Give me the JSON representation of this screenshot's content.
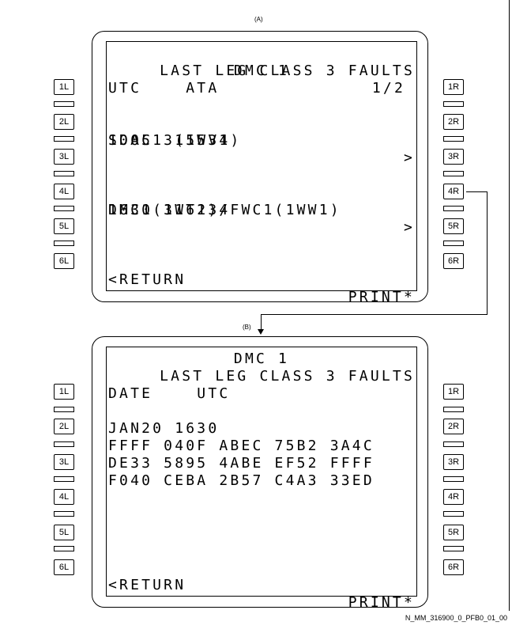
{
  "caption_a": "(A)",
  "caption_b": "(B)",
  "figure_id": "N_MM_316900_0_PFB0_01_00",
  "left_keys": [
    "1L",
    "2L",
    "3L",
    "4L",
    "5L",
    "6L"
  ],
  "right_keys": [
    "1R",
    "2R",
    "3R",
    "4R",
    "5R",
    "6R"
  ],
  "screen_a": {
    "title": "DMC 1",
    "page": "1/2",
    "header": "LAST LEG CLASS 3 FAULTS",
    "col_headers": "UTC    ATA",
    "fault1_line1": "1005 315534",
    "fault1_arrow": ">",
    "fault1_line2": "SDAC1 (1WV1)",
    "fault2_line1": "1630 316234",
    "fault2_arrow": ">",
    "fault2_line2": "DMC1(1WT1)/FWC1(1WW1)",
    "return": "<RETURN",
    "print": "PRINT*"
  },
  "screen_b": {
    "title": "DMC 1",
    "header": "LAST LEG CLASS 3 FAULTS",
    "col_headers": "DATE    UTC",
    "date_line": "JAN20 1630",
    "hex_rows": [
      "FFFF 040F ABEC 75B2 3A4C",
      "DE33 5895 4ABE EF52 FFFF",
      "F040 CEBA 2B57 C4A3 33ED"
    ],
    "return": "<RETURN",
    "print": "PRINT*"
  }
}
